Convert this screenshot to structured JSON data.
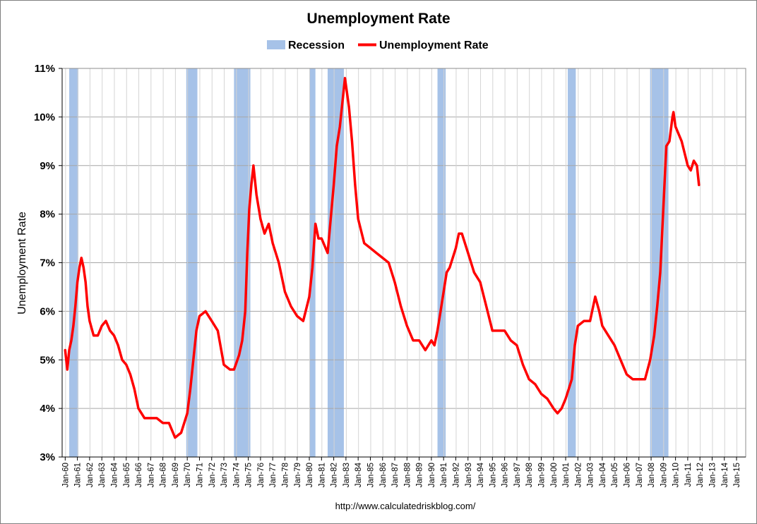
{
  "chart_data": {
    "type": "line",
    "title": "Unemployment Rate",
    "ylabel": "Unemployment Rate",
    "xlabel": "",
    "source": "http://www.calculatedriskblog.com/",
    "ylim": [
      3,
      11
    ],
    "yticks": [
      "3%",
      "4%",
      "5%",
      "6%",
      "7%",
      "8%",
      "9%",
      "10%",
      "11%"
    ],
    "xticks": [
      "Jan-60",
      "Jan-61",
      "Jan-62",
      "Jan-63",
      "Jan-64",
      "Jan-65",
      "Jan-66",
      "Jan-67",
      "Jan-68",
      "Jan-69",
      "Jan-70",
      "Jan-71",
      "Jan-72",
      "Jan-73",
      "Jan-74",
      "Jan-75",
      "Jan-76",
      "Jan-77",
      "Jan-78",
      "Jan-79",
      "Jan-80",
      "Jan-81",
      "Jan-82",
      "Jan-83",
      "Jan-84",
      "Jan-85",
      "Jan-86",
      "Jan-87",
      "Jan-88",
      "Jan-89",
      "Jan-90",
      "Jan-91",
      "Jan-92",
      "Jan-93",
      "Jan-94",
      "Jan-95",
      "Jan-96",
      "Jan-97",
      "Jan-98",
      "Jan-99",
      "Jan-00",
      "Jan-01",
      "Jan-02",
      "Jan-03",
      "Jan-04",
      "Jan-05",
      "Jan-06",
      "Jan-07",
      "Jan-08",
      "Jan-09",
      "Jan-10",
      "Jan-11",
      "Jan-12",
      "Jan-13",
      "Jan-14",
      "Jan-15"
    ],
    "grid": true,
    "legend": {
      "placement": "top-center",
      "entries": [
        "Recession",
        "Unemployment Rate"
      ]
    },
    "colors": {
      "line": "#ff0000",
      "recession": "#a6c2e8",
      "grid": "#a6a6a6"
    },
    "recessions": [
      {
        "start": 1960.33,
        "end": 1961.08
      },
      {
        "start": 1969.92,
        "end": 1970.83
      },
      {
        "start": 1973.83,
        "end": 1975.17
      },
      {
        "start": 1980.0,
        "end": 1980.5
      },
      {
        "start": 1981.5,
        "end": 1982.83
      },
      {
        "start": 1990.5,
        "end": 1991.17
      },
      {
        "start": 2001.17,
        "end": 2001.83
      },
      {
        "start": 2007.92,
        "end": 2009.42
      }
    ],
    "series": [
      {
        "name": "Unemployment Rate",
        "x": [
          1960.0,
          1960.17,
          1960.33,
          1960.5,
          1960.67,
          1960.83,
          1961.0,
          1961.17,
          1961.33,
          1961.5,
          1961.67,
          1961.83,
          1962.0,
          1962.33,
          1962.67,
          1963.0,
          1963.33,
          1963.67,
          1964.0,
          1964.33,
          1964.67,
          1965.0,
          1965.33,
          1965.67,
          1966.0,
          1966.5,
          1967.0,
          1967.5,
          1968.0,
          1968.5,
          1969.0,
          1969.5,
          1970.0,
          1970.25,
          1970.5,
          1970.75,
          1971.0,
          1971.5,
          1972.0,
          1972.5,
          1973.0,
          1973.5,
          1973.83,
          1974.25,
          1974.5,
          1974.75,
          1974.92,
          1975.08,
          1975.25,
          1975.42,
          1975.67,
          1976.0,
          1976.33,
          1976.67,
          1977.0,
          1977.5,
          1978.0,
          1978.5,
          1979.0,
          1979.5,
          1980.0,
          1980.25,
          1980.5,
          1980.75,
          1981.0,
          1981.5,
          1981.75,
          1982.0,
          1982.25,
          1982.5,
          1982.75,
          1982.92,
          1983.25,
          1983.5,
          1983.75,
          1984.0,
          1984.5,
          1985.0,
          1985.5,
          1986.0,
          1986.5,
          1987.0,
          1987.5,
          1988.0,
          1988.5,
          1989.0,
          1989.5,
          1990.0,
          1990.25,
          1990.5,
          1990.75,
          1991.0,
          1991.25,
          1991.5,
          1992.0,
          1992.25,
          1992.5,
          1993.0,
          1993.5,
          1994.0,
          1994.5,
          1995.0,
          1995.5,
          1996.0,
          1996.5,
          1997.0,
          1997.5,
          1998.0,
          1998.5,
          1999.0,
          1999.5,
          2000.0,
          2000.33,
          2000.67,
          2001.0,
          2001.25,
          2001.5,
          2001.75,
          2002.0,
          2002.5,
          2003.0,
          2003.42,
          2003.75,
          2004.0,
          2004.5,
          2005.0,
          2005.5,
          2006.0,
          2006.5,
          2007.0,
          2007.5,
          2007.92,
          2008.25,
          2008.5,
          2008.75,
          2009.0,
          2009.25,
          2009.5,
          2009.75,
          2009.83,
          2010.0,
          2010.5,
          2011.0,
          2011.25,
          2011.5,
          2011.75,
          2011.92
        ],
        "y": [
          5.2,
          4.8,
          5.2,
          5.4,
          5.7,
          6.1,
          6.6,
          6.9,
          7.1,
          6.9,
          6.6,
          6.1,
          5.8,
          5.5,
          5.5,
          5.7,
          5.8,
          5.6,
          5.5,
          5.3,
          5.0,
          4.9,
          4.7,
          4.4,
          4.0,
          3.8,
          3.8,
          3.8,
          3.7,
          3.7,
          3.4,
          3.5,
          3.9,
          4.4,
          5.0,
          5.6,
          5.9,
          6.0,
          5.8,
          5.6,
          4.9,
          4.8,
          4.8,
          5.1,
          5.4,
          6.0,
          7.2,
          8.1,
          8.6,
          9.0,
          8.4,
          7.9,
          7.6,
          7.8,
          7.4,
          7.0,
          6.4,
          6.1,
          5.9,
          5.8,
          6.3,
          6.9,
          7.8,
          7.5,
          7.5,
          7.2,
          7.9,
          8.6,
          9.4,
          9.8,
          10.4,
          10.8,
          10.2,
          9.5,
          8.6,
          7.9,
          7.4,
          7.3,
          7.2,
          7.1,
          7.0,
          6.6,
          6.1,
          5.7,
          5.4,
          5.4,
          5.2,
          5.4,
          5.3,
          5.6,
          6.0,
          6.4,
          6.8,
          6.9,
          7.3,
          7.6,
          7.6,
          7.2,
          6.8,
          6.6,
          6.1,
          5.6,
          5.6,
          5.6,
          5.4,
          5.3,
          4.9,
          4.6,
          4.5,
          4.3,
          4.2,
          4.0,
          3.9,
          4.0,
          4.2,
          4.4,
          4.6,
          5.3,
          5.7,
          5.8,
          5.8,
          6.3,
          6.0,
          5.7,
          5.5,
          5.3,
          5.0,
          4.7,
          4.6,
          4.6,
          4.6,
          5.0,
          5.5,
          6.1,
          6.8,
          8.1,
          9.4,
          9.5,
          10.0,
          10.1,
          9.8,
          9.5,
          9.0,
          8.9,
          9.1,
          9.0,
          8.6
        ]
      }
    ]
  }
}
